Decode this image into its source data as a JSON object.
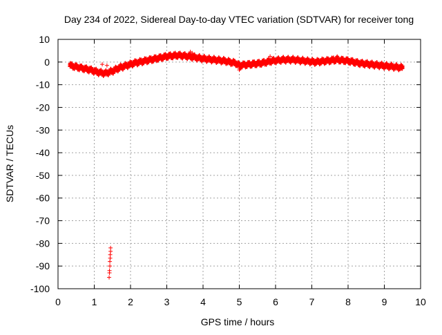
{
  "chart_data": {
    "type": "scatter",
    "title": "Day 234 of 2022, Sidereal Day-to-day VTEC variation (SDTVAR) for receiver tong",
    "xlabel": "GPS time / hours",
    "ylabel": "SDTVAR / TECUs",
    "xlim": [
      0,
      10
    ],
    "ylim": [
      -100,
      10
    ],
    "xticks": [
      0,
      1,
      2,
      3,
      4,
      5,
      6,
      7,
      8,
      9,
      10
    ],
    "yticks": [
      10,
      0,
      -10,
      -20,
      -30,
      -40,
      -50,
      -60,
      -70,
      -80,
      -90,
      -100
    ],
    "grid": true,
    "legend": "none",
    "series": [
      {
        "name": "SDTVAR",
        "color": "#ff0000",
        "marker": "plus",
        "band_center": {
          "x": [
            0.33,
            0.6,
            0.9,
            1.1,
            1.3,
            1.5,
            1.7,
            1.9,
            2.1,
            2.4,
            2.7,
            3.0,
            3.3,
            3.6,
            3.8,
            4.0,
            4.3,
            4.6,
            4.9,
            5.0,
            5.3,
            5.6,
            5.9,
            6.2,
            6.5,
            6.8,
            7.1,
            7.4,
            7.7,
            8.0,
            8.3,
            8.6,
            8.9,
            9.2,
            9.5
          ],
          "y": [
            -1.5,
            -2.5,
            -3.5,
            -4.5,
            -5.0,
            -4.0,
            -2.5,
            -1.5,
            -0.5,
            0.5,
            1.5,
            2.5,
            3.0,
            2.5,
            2.0,
            1.5,
            1.0,
            0.5,
            -0.5,
            -1.5,
            -1.0,
            -0.5,
            0.5,
            1.0,
            1.0,
            0.5,
            0.0,
            0.5,
            1.0,
            0.5,
            -0.5,
            -1.0,
            -1.5,
            -2.0,
            -2.5
          ]
        },
        "band_half_width": 0.9,
        "outliers": {
          "x": [
            1.45,
            1.45,
            1.44,
            1.44,
            1.43,
            1.43,
            1.42,
            1.42,
            1.41,
            1.22,
            3.65,
            3.7,
            5.0,
            5.02,
            5.85,
            7.6,
            7.7,
            1.35
          ],
          "y": [
            -82,
            -83.5,
            -85,
            -86.5,
            -88,
            -90,
            -92,
            -93,
            -95,
            -1.0,
            4.5,
            4.0,
            -3.5,
            -3.0,
            2.5,
            2.0,
            2.5,
            -1.5
          ]
        }
      }
    ]
  }
}
